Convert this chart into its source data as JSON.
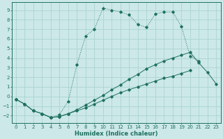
{
  "xlabel": "Humidex (Indice chaleur)",
  "bg_color": "#cce8e8",
  "grid_color": "#aad4d0",
  "line_color": "#1e7060",
  "xlim": [
    -0.5,
    23.5
  ],
  "ylim": [
    -2.8,
    9.8
  ],
  "xticks": [
    0,
    1,
    2,
    3,
    4,
    5,
    6,
    7,
    8,
    9,
    10,
    11,
    12,
    13,
    14,
    15,
    16,
    17,
    18,
    19,
    20,
    21,
    22,
    23
  ],
  "yticks": [
    -2,
    -1,
    0,
    1,
    2,
    3,
    4,
    5,
    6,
    7,
    8,
    9
  ],
  "line1_x": [
    0,
    1,
    2,
    3,
    4,
    5,
    6,
    7,
    8,
    9,
    10,
    11,
    12,
    13,
    14,
    15,
    16,
    17,
    18,
    19,
    20,
    21,
    22,
    23
  ],
  "line1_y": [
    -0.3,
    -0.8,
    -1.5,
    -1.8,
    -2.2,
    -1.9,
    -0.5,
    3.3,
    6.3,
    7.0,
    9.2,
    9.0,
    8.8,
    8.5,
    7.5,
    7.2,
    8.6,
    8.8,
    8.8,
    7.3,
    4.2,
    3.7,
    null,
    null
  ],
  "line2_x": [
    0,
    1,
    2,
    3,
    4,
    5,
    6,
    7,
    8,
    9,
    10,
    11,
    12,
    13,
    14,
    15,
    16,
    17,
    18,
    19,
    20,
    21,
    22,
    23
  ],
  "line2_y": [
    -0.3,
    -0.8,
    -1.5,
    -1.8,
    -2.2,
    -2.1,
    -1.8,
    -1.5,
    -1.2,
    -0.8,
    -0.4,
    0.0,
    0.4,
    0.7,
    1.0,
    1.3,
    1.6,
    1.9,
    2.1,
    2.4,
    2.7,
    null,
    null,
    null
  ],
  "line3_x": [
    0,
    1,
    2,
    3,
    4,
    5,
    6,
    7,
    8,
    9,
    10,
    11,
    12,
    13,
    14,
    15,
    16,
    17,
    18,
    19,
    20,
    21,
    22,
    23
  ],
  "line3_y": [
    -0.3,
    -0.8,
    -1.5,
    -1.8,
    -2.2,
    -2.1,
    -1.8,
    -1.4,
    -0.9,
    -0.4,
    0.1,
    0.7,
    1.2,
    1.8,
    2.3,
    2.9,
    3.3,
    3.7,
    4.0,
    4.3,
    4.6,
    3.5,
    2.5,
    1.3
  ]
}
